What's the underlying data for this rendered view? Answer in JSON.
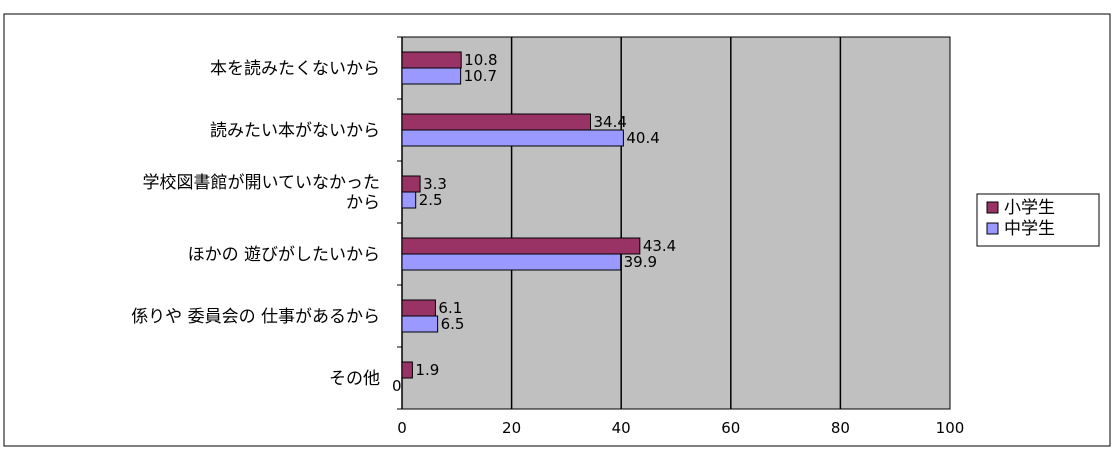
{
  "chart_data": {
    "type": "bar",
    "orientation": "horizontal",
    "categories": [
      [
        "本を読みたくないから"
      ],
      [
        "読みたい本がないから"
      ],
      [
        "学校図書館が開いていなかった",
        "から"
      ],
      [
        "ほかの 遊びがしたいから"
      ],
      [
        "係りや 委員会の 仕事があるから"
      ],
      [
        "その他"
      ]
    ],
    "series": [
      {
        "name": "小学生",
        "values": [
          10.8,
          34.4,
          3.3,
          43.4,
          6.1,
          1.9
        ],
        "color": "#993366"
      },
      {
        "name": "中学生",
        "values": [
          10.7,
          40.4,
          2.5,
          39.9,
          6.5,
          0
        ],
        "color": "#9999ff"
      }
    ],
    "data_labels": [
      [
        "10.8",
        "34.4",
        "3.3",
        "43.4",
        "6.1",
        "1.9"
      ],
      [
        "10.7",
        "40.4",
        "2.5",
        "39.9",
        "6.5",
        "0"
      ]
    ],
    "x_ticks": [
      "0",
      "20",
      "40",
      "60",
      "80",
      "100"
    ],
    "xlim": [
      0,
      100
    ],
    "grid": true,
    "plot_background": "#c0c0c0",
    "legend_position": "right"
  }
}
